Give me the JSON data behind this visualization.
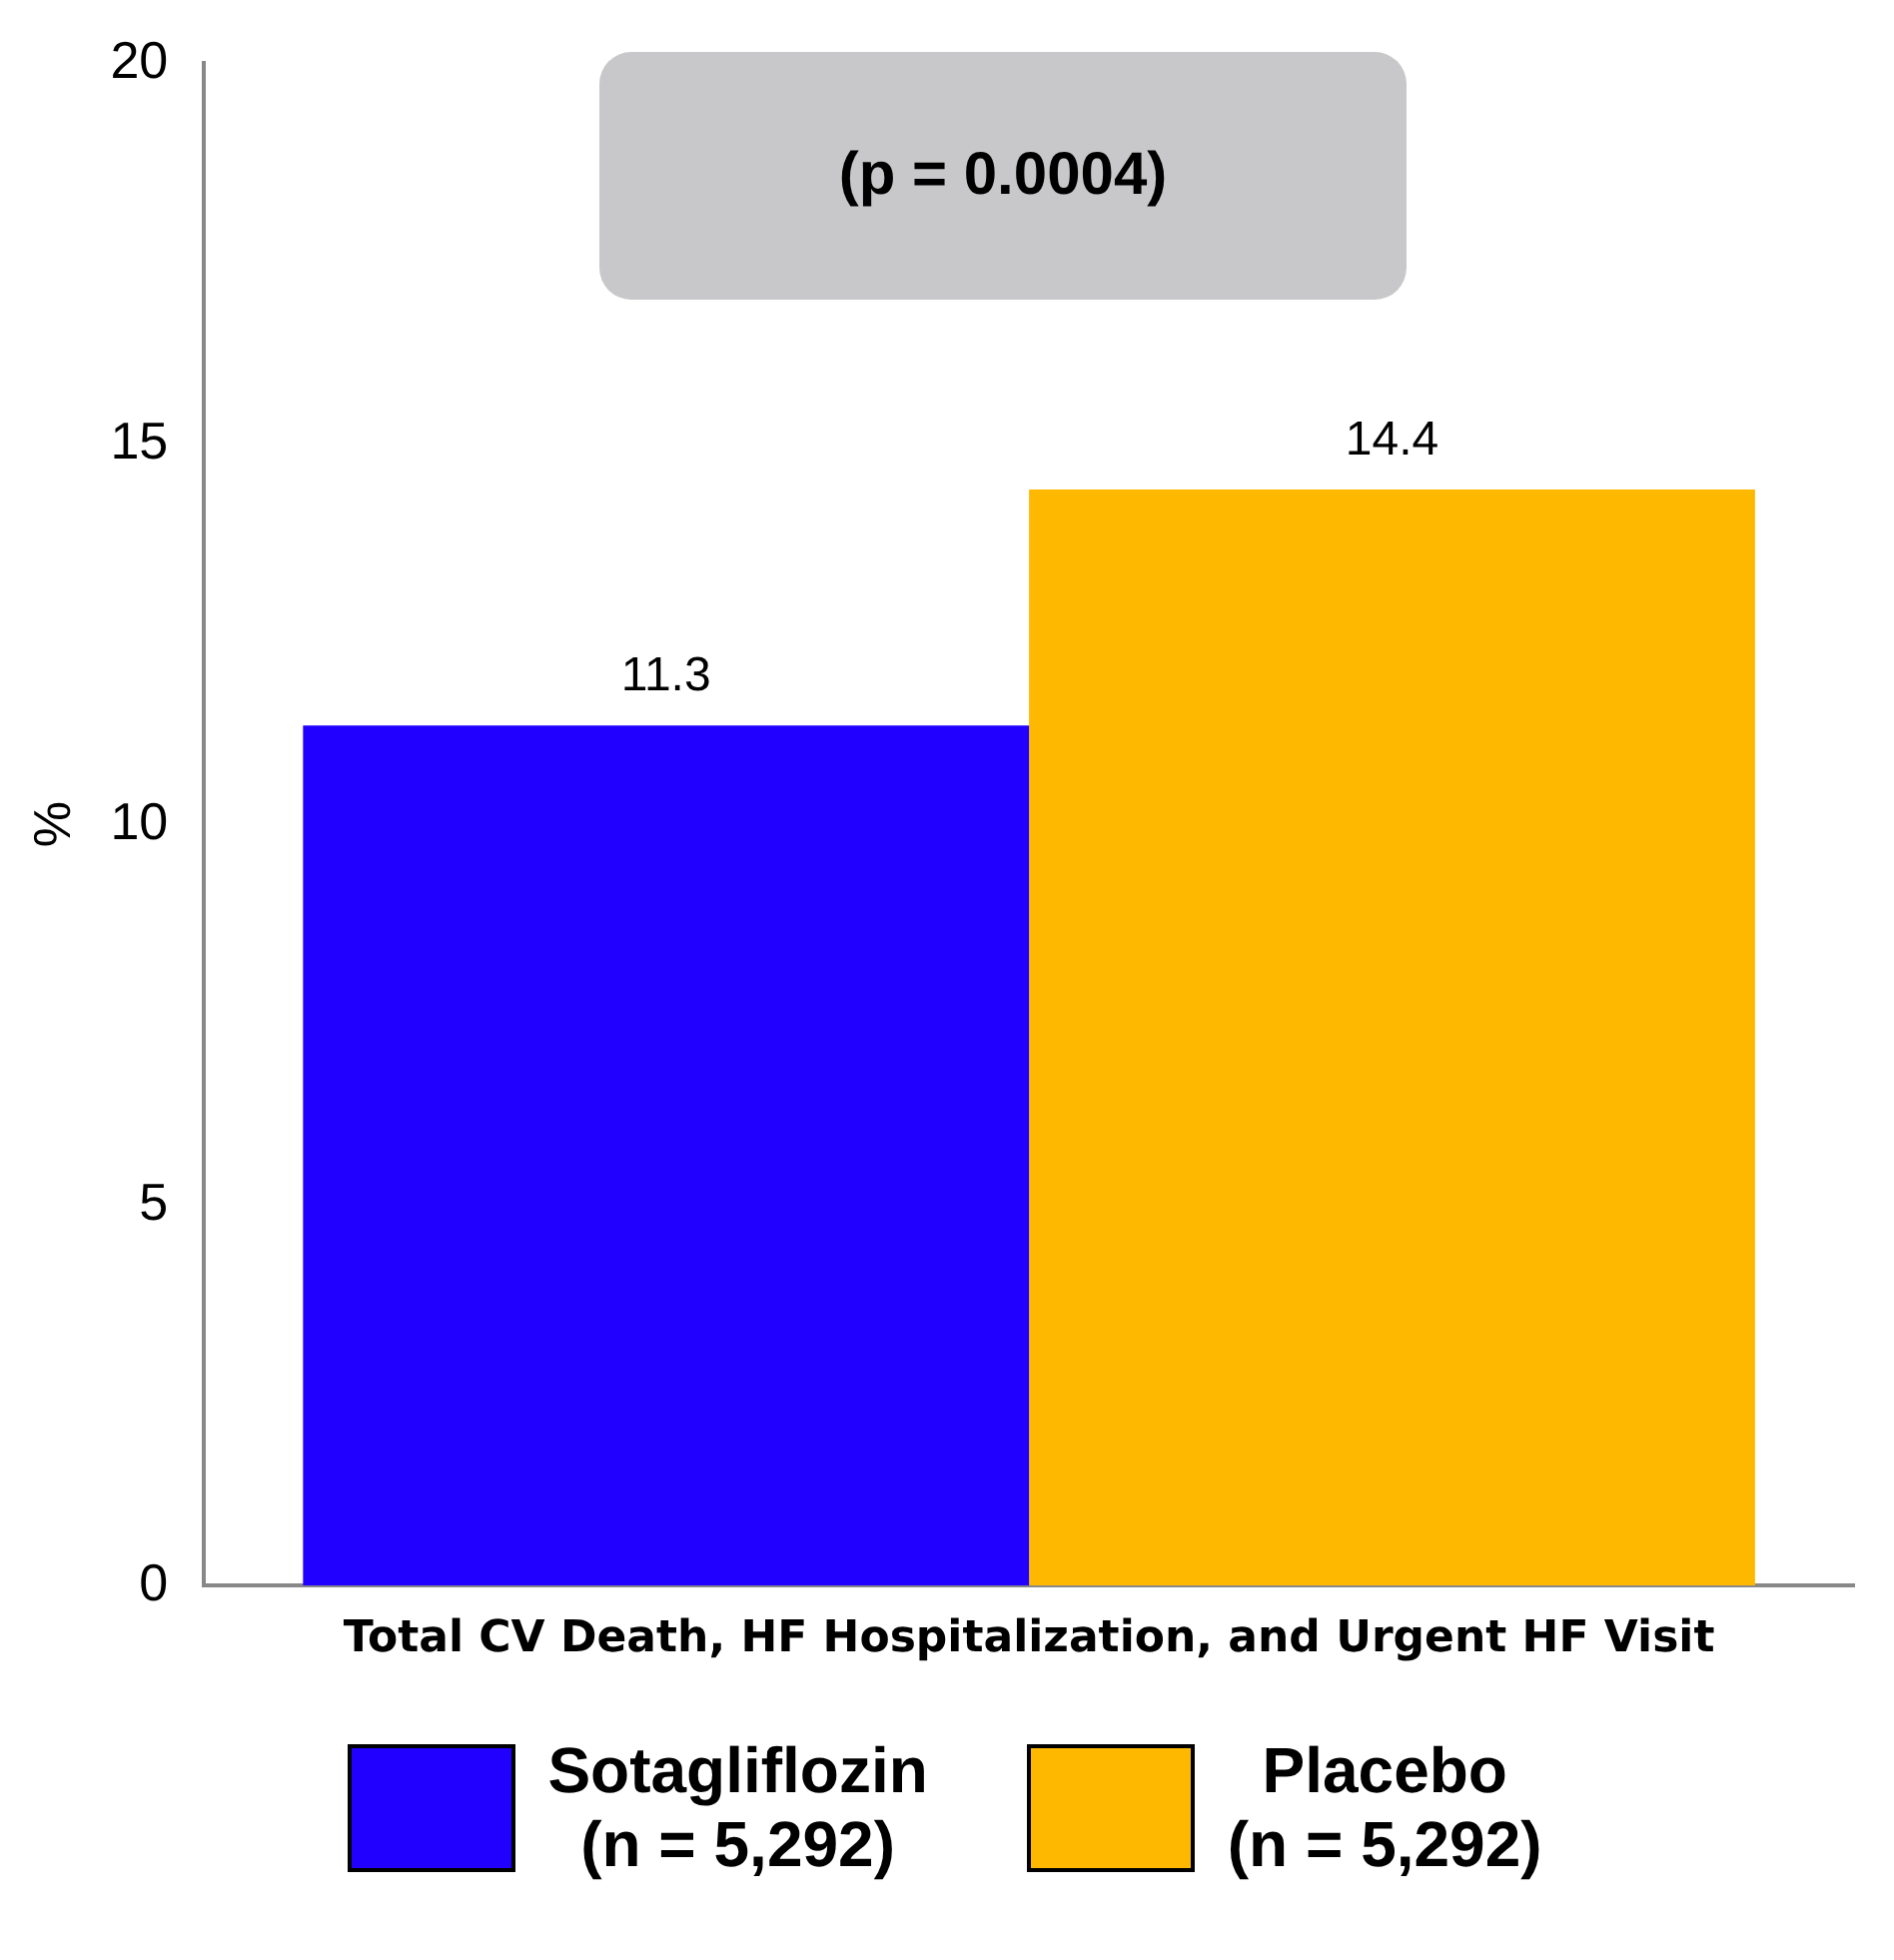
{
  "chart_data": {
    "type": "bar",
    "ylabel": "%",
    "categories": [
      "Total CV Death, HF Hospitalization, and Urgent HF Visit"
    ],
    "series": [
      {
        "name": "Sotagliflozin\n(n = 5,292)",
        "color": "#2200ff",
        "values": [
          11.3
        ]
      },
      {
        "name": "Placebo\n(n = 5,292)",
        "color": "#ffb800",
        "values": [
          14.4
        ]
      }
    ],
    "ylim": [
      0,
      20
    ],
    "yticks": [
      0,
      5,
      10,
      15,
      20
    ],
    "grid": false,
    "legend": "bottom",
    "data_labels": true,
    "annotations": [
      "(p = 0.0004)"
    ]
  }
}
